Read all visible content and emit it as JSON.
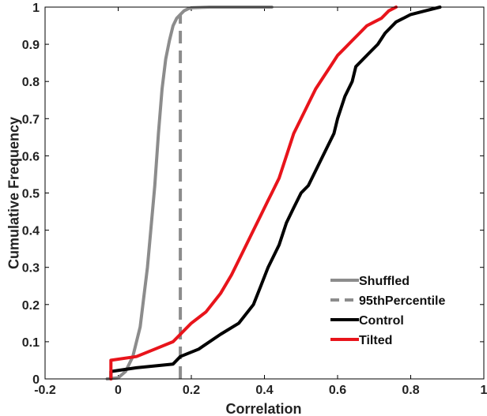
{
  "chart_data": {
    "type": "line",
    "title": "",
    "xlabel": "Correlation",
    "ylabel": "Cumulative Frequency",
    "xlim": [
      -0.2,
      1
    ],
    "ylim": [
      0,
      1
    ],
    "xticks": [
      -0.2,
      0,
      0.2,
      0.4,
      0.6,
      0.8,
      1
    ],
    "yticks": [
      0,
      0.1,
      0.2,
      0.3,
      0.4,
      0.5,
      0.6,
      0.7,
      0.8,
      0.9,
      1
    ],
    "xtick_labels": [
      "-0.2",
      "0",
      "0.2",
      "0.4",
      "0.6",
      "0.8",
      "1"
    ],
    "ytick_labels": [
      "0",
      "0.1",
      "0.2",
      "0.3",
      "0.4",
      "0.5",
      "0.6",
      "0.7",
      "0.8",
      "0.9",
      "1"
    ],
    "grid": false,
    "legend_position": "bottom-right",
    "series": [
      {
        "name": "Shuffled",
        "color": "#8c8c8c",
        "style": "solid",
        "x": [
          -0.03,
          0.0,
          0.02,
          0.04,
          0.06,
          0.08,
          0.1,
          0.11,
          0.12,
          0.13,
          0.14,
          0.15,
          0.16,
          0.17,
          0.18,
          0.19,
          0.2,
          0.22,
          0.25,
          0.3,
          0.35,
          0.42
        ],
        "y": [
          0.0,
          0.003,
          0.02,
          0.06,
          0.14,
          0.3,
          0.52,
          0.66,
          0.78,
          0.86,
          0.91,
          0.95,
          0.97,
          0.98,
          0.99,
          0.995,
          0.998,
          0.999,
          1.0,
          1.0,
          1.0,
          1.0
        ]
      },
      {
        "name": "95thPercentile",
        "color": "#8c8c8c",
        "style": "dashed",
        "x": [
          0.17,
          0.17
        ],
        "y": [
          0,
          0.98
        ]
      },
      {
        "name": "Control",
        "color": "#000000",
        "style": "solid",
        "x": [
          -0.02,
          -0.02,
          0.05,
          0.15,
          0.17,
          0.22,
          0.28,
          0.33,
          0.37,
          0.39,
          0.41,
          0.44,
          0.46,
          0.48,
          0.5,
          0.52,
          0.55,
          0.57,
          0.59,
          0.6,
          0.62,
          0.64,
          0.65,
          0.67,
          0.69,
          0.71,
          0.73,
          0.76,
          0.78,
          0.8,
          0.84,
          0.88
        ],
        "y": [
          0.0,
          0.02,
          0.03,
          0.04,
          0.06,
          0.08,
          0.12,
          0.15,
          0.2,
          0.25,
          0.3,
          0.36,
          0.42,
          0.46,
          0.5,
          0.52,
          0.58,
          0.62,
          0.66,
          0.7,
          0.76,
          0.8,
          0.84,
          0.86,
          0.88,
          0.9,
          0.93,
          0.96,
          0.97,
          0.98,
          0.99,
          1.0
        ]
      },
      {
        "name": "Tilted",
        "color": "#e8141b",
        "style": "solid",
        "x": [
          -0.02,
          -0.02,
          0.05,
          0.1,
          0.15,
          0.2,
          0.24,
          0.28,
          0.31,
          0.34,
          0.37,
          0.39,
          0.41,
          0.42,
          0.44,
          0.46,
          0.48,
          0.5,
          0.52,
          0.54,
          0.56,
          0.58,
          0.6,
          0.62,
          0.64,
          0.66,
          0.68,
          0.7,
          0.72,
          0.74,
          0.76
        ],
        "y": [
          0.0,
          0.05,
          0.06,
          0.08,
          0.1,
          0.15,
          0.18,
          0.23,
          0.28,
          0.34,
          0.4,
          0.44,
          0.48,
          0.5,
          0.54,
          0.6,
          0.66,
          0.7,
          0.74,
          0.78,
          0.81,
          0.84,
          0.87,
          0.89,
          0.91,
          0.93,
          0.95,
          0.96,
          0.97,
          0.99,
          1.0
        ]
      }
    ]
  }
}
